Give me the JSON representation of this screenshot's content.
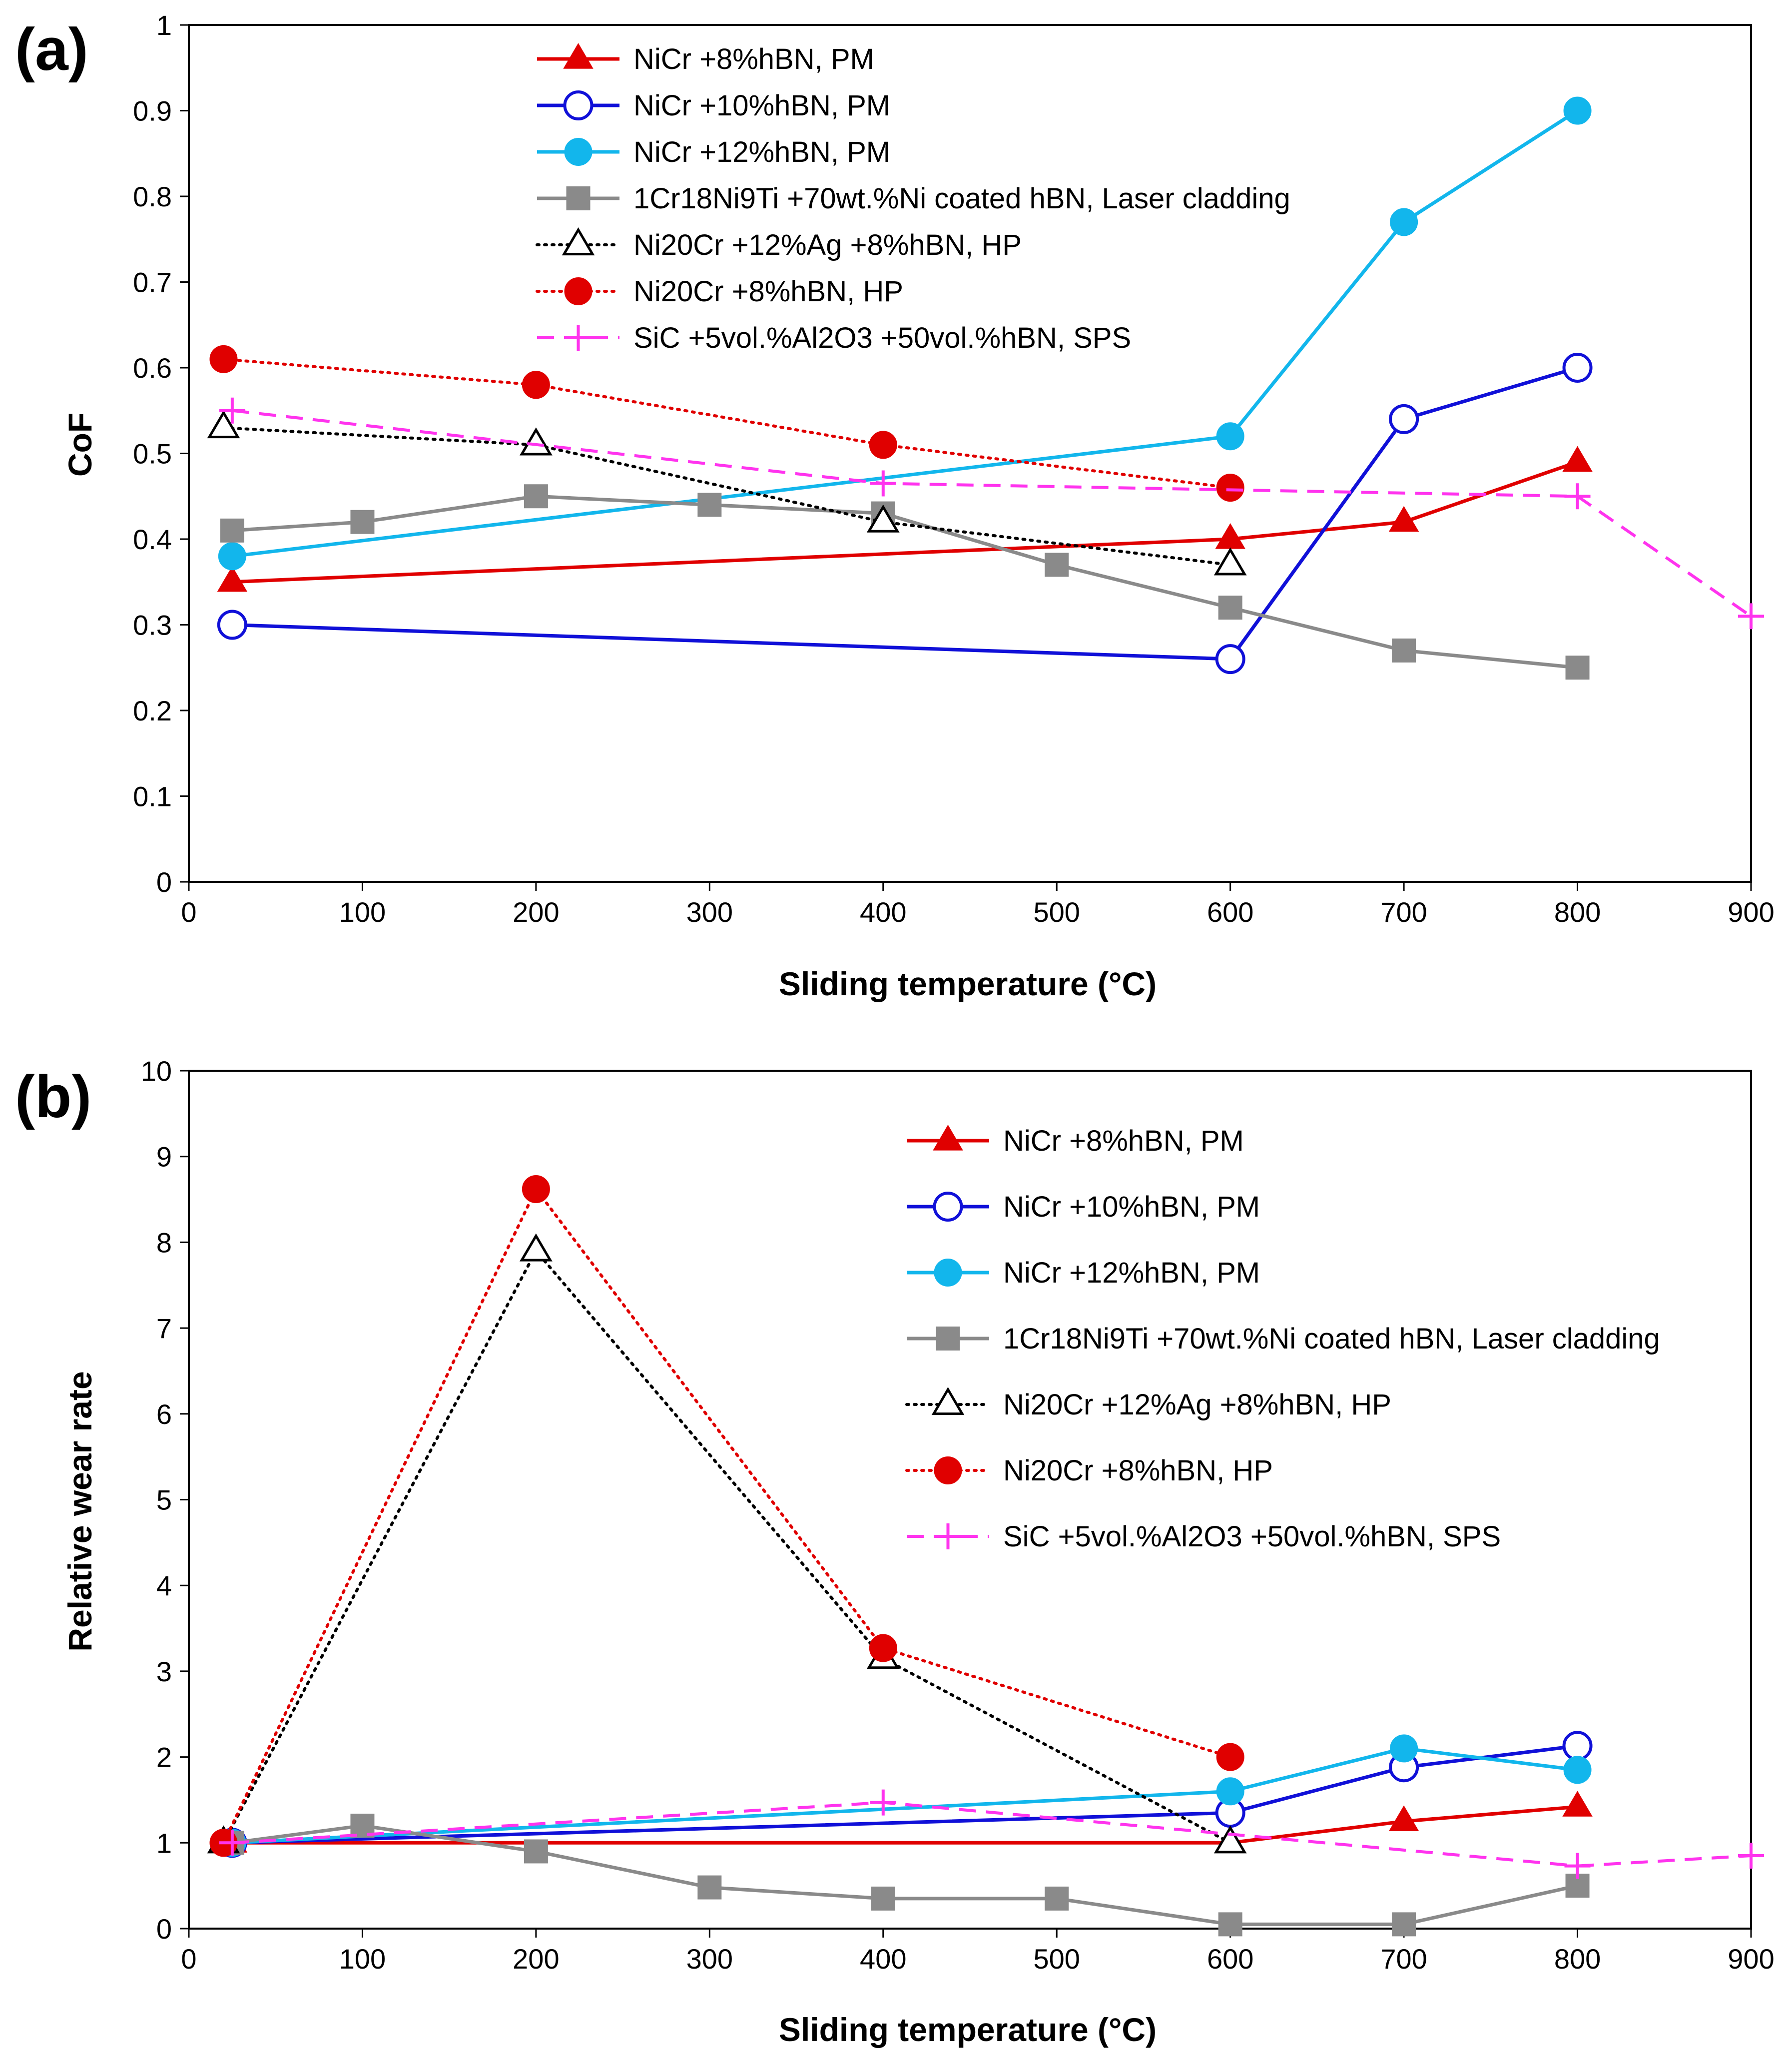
{
  "figure_labels": [
    "(a)",
    "(b)"
  ],
  "chart_data": [
    {
      "type": "line",
      "panel": "(a)",
      "title": "",
      "xlabel": "Sliding temperature (°C)",
      "ylabel": "CoF",
      "xlim": [
        0,
        900
      ],
      "ylim": [
        0,
        1
      ],
      "xticks": [
        "0",
        "100",
        "200",
        "300",
        "400",
        "500",
        "600",
        "700",
        "800",
        "900"
      ],
      "yticks": [
        "0",
        "0.1",
        "0.2",
        "0.3",
        "0.4",
        "0.5",
        "0.6",
        "0.7",
        "0.8",
        "0.9",
        "1"
      ],
      "grid": false,
      "legend_position": "top-center",
      "series": [
        {
          "name": "NiCr +8%hBN, PM",
          "color": "#e00000",
          "style": "solid",
          "marker": "triangle-filled",
          "x": [
            25,
            600,
            700,
            800
          ],
          "y": [
            0.35,
            0.4,
            0.42,
            0.49
          ]
        },
        {
          "name": "NiCr +10%hBN, PM",
          "color": "#1010d8",
          "style": "solid",
          "marker": "circle-open",
          "x": [
            25,
            600,
            700,
            800
          ],
          "y": [
            0.3,
            0.26,
            0.54,
            0.6
          ]
        },
        {
          "name": "NiCr +12%hBN, PM",
          "color": "#12b6ec",
          "style": "solid",
          "marker": "circle-filled",
          "x": [
            25,
            600,
            700,
            800
          ],
          "y": [
            0.38,
            0.52,
            0.77,
            0.9
          ]
        },
        {
          "name": "1Cr18Ni9Ti +70wt.%Ni coated hBN, Laser cladding",
          "color": "#8a8a8a",
          "style": "solid",
          "marker": "square-filled",
          "x": [
            25,
            100,
            200,
            300,
            400,
            500,
            600,
            700,
            800
          ],
          "y": [
            0.41,
            0.42,
            0.45,
            0.44,
            0.43,
            0.37,
            0.32,
            0.27,
            0.25
          ]
        },
        {
          "name": "Ni20Cr +12%Ag +8%hBN, HP",
          "color": "#000000",
          "style": "dotted",
          "marker": "triangle-open",
          "x": [
            20,
            200,
            400,
            600
          ],
          "y": [
            0.53,
            0.51,
            0.42,
            0.37
          ]
        },
        {
          "name": "Ni20Cr +8%hBN, HP",
          "color": "#e00000",
          "style": "dotted",
          "marker": "circle-filled",
          "x": [
            20,
            200,
            400,
            600
          ],
          "y": [
            0.61,
            0.58,
            0.51,
            0.46
          ]
        },
        {
          "name": "SiC +5vol.%Al2O3 +50vol.%hBN, SPS",
          "color": "#ff33ee",
          "style": "dashed",
          "marker": "plus",
          "x": [
            25,
            400,
            800,
            900
          ],
          "y": [
            0.55,
            0.465,
            0.45,
            0.31
          ]
        }
      ]
    },
    {
      "type": "line",
      "panel": "(b)",
      "title": "",
      "xlabel": "Sliding temperature (°C)",
      "ylabel": "Relative wear rate",
      "xlim": [
        0,
        900
      ],
      "ylim": [
        0,
        10
      ],
      "xticks": [
        "0",
        "100",
        "200",
        "300",
        "400",
        "500",
        "600",
        "700",
        "800",
        "900"
      ],
      "yticks": [
        "0",
        "1",
        "2",
        "3",
        "4",
        "5",
        "6",
        "7",
        "8",
        "9",
        "10"
      ],
      "grid": false,
      "legend_position": "top-right",
      "series": [
        {
          "name": "NiCr +8%hBN, PM",
          "color": "#e00000",
          "style": "solid",
          "marker": "triangle-filled",
          "x": [
            25,
            600,
            700,
            800
          ],
          "y": [
            1.0,
            1.0,
            1.25,
            1.42
          ]
        },
        {
          "name": "NiCr +10%hBN, PM",
          "color": "#1010d8",
          "style": "solid",
          "marker": "circle-open",
          "x": [
            25,
            600,
            700,
            800
          ],
          "y": [
            1.0,
            1.35,
            1.88,
            2.13
          ]
        },
        {
          "name": "NiCr +12%hBN, PM",
          "color": "#12b6ec",
          "style": "solid",
          "marker": "circle-filled",
          "x": [
            25,
            600,
            700,
            800
          ],
          "y": [
            1.0,
            1.6,
            2.1,
            1.85
          ]
        },
        {
          "name": "1Cr18Ni9Ti +70wt.%Ni coated hBN, Laser cladding",
          "color": "#8a8a8a",
          "style": "solid",
          "marker": "square-filled",
          "x": [
            25,
            100,
            200,
            300,
            400,
            500,
            600,
            700,
            800
          ],
          "y": [
            1.0,
            1.2,
            0.9,
            0.48,
            0.35,
            0.35,
            0.05,
            0.05,
            0.5
          ]
        },
        {
          "name": "Ni20Cr +12%Ag +8%hBN, HP",
          "color": "#000000",
          "style": "dotted",
          "marker": "triangle-open",
          "x": [
            20,
            200,
            400,
            600
          ],
          "y": [
            1.0,
            7.9,
            3.15,
            1.0
          ]
        },
        {
          "name": "Ni20Cr +8%hBN, HP",
          "color": "#e00000",
          "style": "dotted",
          "marker": "circle-filled",
          "x": [
            20,
            200,
            400,
            600
          ],
          "y": [
            1.0,
            8.62,
            3.27,
            2.0
          ]
        },
        {
          "name": "SiC +5vol.%Al2O3 +50vol.%hBN, SPS",
          "color": "#ff33ee",
          "style": "dashed",
          "marker": "plus",
          "x": [
            25,
            400,
            800,
            900
          ],
          "y": [
            1.0,
            1.47,
            0.73,
            0.85
          ]
        }
      ]
    }
  ]
}
